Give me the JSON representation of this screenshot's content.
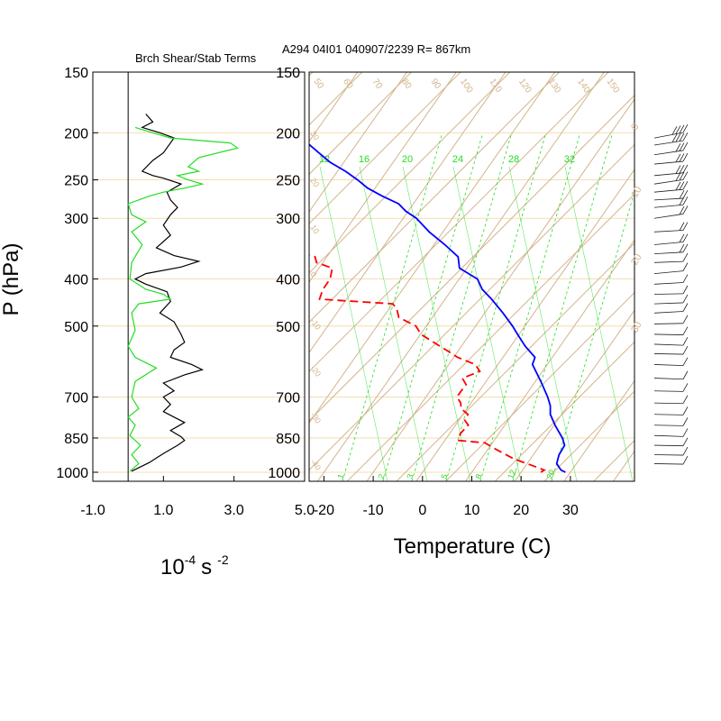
{
  "header": {
    "left_title": "Brch Shear/Stab Terms",
    "right_title": "A294 04I01 040907/2239 R= 867km"
  },
  "colors": {
    "isobar": "#f5deb3",
    "skew_grid": "#d2b48c",
    "mixing_ratio": "#22dd22",
    "temperature": "#0000ff",
    "dewpoint": "#ff0000",
    "shear": "#000000",
    "stability": "#22dd22",
    "frame": "#000000"
  },
  "chart_data": [
    {
      "type": "line",
      "name": "shear-stability-panel",
      "title": "Brch Shear/Stab Terms",
      "xlabel_main": "10",
      "xlabel_exp": "-4",
      "xlabel_unit": "s",
      "xlabel_unit_exp": "-2",
      "ylabel": "P (hPa)",
      "y_scale": "log",
      "xlim": [
        -1.0,
        5.0
      ],
      "ylim": [
        1000,
        150
      ],
      "x_tick_labels": [
        "-1.0",
        "1.0",
        "3.0",
        "5.0"
      ],
      "x_ticks": [
        -1.0,
        1.0,
        3.0,
        5.0
      ],
      "y_tick_labels": [
        "150",
        "200",
        "250",
        "300",
        "400",
        "500",
        "700",
        "850",
        "1000"
      ],
      "y_ticks": [
        150,
        200,
        250,
        300,
        400,
        500,
        700,
        850,
        1000
      ],
      "zero_line": 0,
      "series": [
        {
          "key": "shear",
          "points": [
            [
              0.5,
              183
            ],
            [
              0.7,
              190
            ],
            [
              0.4,
              195
            ],
            [
              0.9,
              200
            ],
            [
              1.3,
              205
            ],
            [
              1.0,
              220
            ],
            [
              0.7,
              228
            ],
            [
              0.4,
              240
            ],
            [
              0.7,
              245
            ],
            [
              1.0,
              248
            ],
            [
              1.5,
              255
            ],
            [
              1.1,
              265
            ],
            [
              1.2,
              275
            ],
            [
              1.4,
              285
            ],
            [
              1.2,
              295
            ],
            [
              1.0,
              310
            ],
            [
              1.2,
              325
            ],
            [
              0.8,
              345
            ],
            [
              1.3,
              358
            ],
            [
              2.0,
              368
            ],
            [
              1.5,
              378
            ],
            [
              0.5,
              390
            ],
            [
              0.2,
              400
            ],
            [
              0.5,
              410
            ],
            [
              1.1,
              425
            ],
            [
              1.2,
              445
            ],
            [
              0.9,
              470
            ],
            [
              1.3,
              490
            ],
            [
              1.5,
              520
            ],
            [
              1.6,
              540
            ],
            [
              1.3,
              560
            ],
            [
              1.2,
              580
            ],
            [
              1.8,
              600
            ],
            [
              2.1,
              615
            ],
            [
              1.6,
              630
            ],
            [
              1.0,
              655
            ],
            [
              1.3,
              680
            ],
            [
              1.0,
              700
            ],
            [
              1.2,
              725
            ],
            [
              1.0,
              750
            ],
            [
              1.3,
              770
            ],
            [
              1.6,
              790
            ],
            [
              1.4,
              805
            ],
            [
              1.2,
              820
            ],
            [
              1.5,
              845
            ],
            [
              1.6,
              860
            ],
            [
              1.4,
              880
            ],
            [
              1.0,
              915
            ],
            [
              0.6,
              955
            ],
            [
              0.1,
              995
            ]
          ]
        },
        {
          "key": "stability",
          "points": [
            [
              0.2,
              195
            ],
            [
              0.7,
              200
            ],
            [
              1.2,
              205
            ],
            [
              2.9,
              210
            ],
            [
              3.1,
              215
            ],
            [
              2.0,
              225
            ],
            [
              1.7,
              235
            ],
            [
              2.0,
              240
            ],
            [
              1.4,
              245
            ],
            [
              1.7,
              250
            ],
            [
              2.1,
              255
            ],
            [
              1.6,
              260
            ],
            [
              1.0,
              265
            ],
            [
              0.6,
              270
            ],
            [
              0.0,
              280
            ],
            [
              0.1,
              295
            ],
            [
              0.5,
              305
            ],
            [
              0.1,
              320
            ],
            [
              0.4,
              340
            ],
            [
              0.1,
              370
            ],
            [
              0.05,
              400
            ],
            [
              0.5,
              420
            ],
            [
              1.0,
              430
            ],
            [
              1.2,
              440
            ],
            [
              0.3,
              450
            ],
            [
              0.1,
              470
            ],
            [
              0.2,
              510
            ],
            [
              0.0,
              550
            ],
            [
              0.2,
              580
            ],
            [
              0.8,
              610
            ],
            [
              0.2,
              650
            ],
            [
              0.1,
              700
            ],
            [
              0.3,
              740
            ],
            [
              0.0,
              770
            ],
            [
              0.2,
              800
            ],
            [
              0.05,
              840
            ],
            [
              0.35,
              880
            ],
            [
              0.1,
              920
            ],
            [
              0.3,
              960
            ],
            [
              0.05,
              995
            ]
          ]
        }
      ]
    },
    {
      "type": "line",
      "name": "skew-t-log-p",
      "title": "A294 04I01 040907/2239 R= 867km",
      "xlabel": "Temperature (C)",
      "y_scale": "log",
      "xlim": [
        -23,
        43
      ],
      "ylim": [
        1000,
        150
      ],
      "skew_c_per_decade": 69,
      "x_tick_labels": [
        "-20",
        "-10",
        "0",
        "10",
        "20",
        "30"
      ],
      "x_ticks": [
        -20,
        -10,
        0,
        10,
        20,
        30
      ],
      "y_tick_labels": [
        "150",
        "200",
        "250",
        "300",
        "400",
        "500",
        "700",
        "850",
        "1000"
      ],
      "y_ticks": [
        150,
        200,
        250,
        300,
        400,
        500,
        700,
        850,
        1000
      ],
      "mixing_ratio_top_labels": [
        "12",
        "16",
        "20",
        "24",
        "28",
        "32"
      ],
      "mixing_ratio_bottom_labels": [
        "1",
        "2",
        "3",
        "5",
        "8",
        "12",
        "20"
      ],
      "skew_line_top_labels": [
        "50",
        "60",
        "70",
        "80",
        "90",
        "100",
        "110",
        "120",
        "130",
        "140",
        "150"
      ],
      "skew_line_left_labels": [
        "30",
        "20",
        "10",
        "0",
        "-10",
        "-20",
        "-30",
        "-40"
      ],
      "right_edge_labels": [
        "0",
        "10",
        "20",
        "30"
      ],
      "series": [
        {
          "key": "temperature",
          "points": [
            [
              29.0,
              1000
            ],
            [
              27.8,
              990
            ],
            [
              26.0,
              960
            ],
            [
              25.2,
              920
            ],
            [
              25.0,
              880
            ],
            [
              23.5,
              850
            ],
            [
              20.2,
              800
            ],
            [
              17.7,
              760
            ],
            [
              16.5,
              730
            ],
            [
              14.7,
              700
            ],
            [
              11.1,
              650
            ],
            [
              7.0,
              600
            ],
            [
              6.5,
              580
            ],
            [
              2.9,
              550
            ],
            [
              -0.3,
              520
            ],
            [
              -2.5,
              500
            ],
            [
              -6.3,
              470
            ],
            [
              -10.6,
              440
            ],
            [
              -13.9,
              420
            ],
            [
              -16.3,
              400
            ],
            [
              -21.5,
              380
            ],
            [
              -23.4,
              360
            ],
            [
              -27.8,
              340
            ],
            [
              -32.8,
              320
            ],
            [
              -37.3,
              300
            ],
            [
              -40.5,
              290
            ],
            [
              -43.0,
              280
            ],
            [
              -47.4,
              270
            ],
            [
              -51.5,
              260
            ],
            [
              -54.7,
              250
            ],
            [
              -58.4,
              240
            ],
            [
              -62.8,
              230
            ],
            [
              -66.4,
              220
            ],
            [
              -70.1,
              210
            ],
            [
              -72.3,
              200
            ],
            [
              -75.3,
              190
            ],
            [
              -80.7,
              180
            ]
          ]
        },
        {
          "key": "dewpoint",
          "points": [
            [
              24.0,
              1000
            ],
            [
              24.4,
              990
            ],
            [
              23.0,
              980
            ],
            [
              20.0,
              960
            ],
            [
              16.8,
              940
            ],
            [
              12.0,
              900
            ],
            [
              8.5,
              870
            ],
            [
              2.8,
              860
            ],
            [
              2.4,
              850
            ],
            [
              2.2,
              830
            ],
            [
              2.6,
              800
            ],
            [
              1.1,
              780
            ],
            [
              1.0,
              760
            ],
            [
              -1.2,
              740
            ],
            [
              -2.1,
              720
            ],
            [
              -3.7,
              700
            ],
            [
              -3.7,
              680
            ],
            [
              -3.6,
              660
            ],
            [
              -5.3,
              640
            ],
            [
              -2.7,
              620
            ],
            [
              -4.6,
              600
            ],
            [
              -9.2,
              580
            ],
            [
              -12.6,
              560
            ],
            [
              -16.2,
              540
            ],
            [
              -19.9,
              520
            ],
            [
              -22.1,
              500
            ],
            [
              -26.8,
              480
            ],
            [
              -28.5,
              460
            ],
            [
              -30.0,
              450
            ],
            [
              -45.5,
              440
            ],
            [
              -46.2,
              420
            ],
            [
              -46.2,
              400
            ],
            [
              -47.3,
              380
            ],
            [
              -51.3,
              370
            ],
            [
              -52.4,
              360
            ],
            [
              -58.3,
              350
            ],
            [
              -61.5,
              340
            ],
            [
              -58.9,
              320
            ],
            [
              -58.3,
              310
            ],
            [
              -60.5,
              300
            ],
            [
              -65.5,
              290
            ],
            [
              -70.1,
              280
            ],
            [
              -72.6,
              270
            ],
            [
              -73.2,
              260
            ],
            [
              -72.5,
              250
            ],
            [
              -72.6,
              240
            ],
            [
              -72.1,
              230
            ],
            [
              -73.3,
              220
            ],
            [
              -74.3,
              210
            ],
            [
              -76.4,
              200
            ]
          ]
        }
      ]
    }
  ],
  "wind_barbs": [
    [
      205,
      -10,
      35
    ],
    [
      212,
      -8,
      35
    ],
    [
      222,
      -8,
      30
    ],
    [
      232,
      -5,
      30
    ],
    [
      245,
      -5,
      25
    ],
    [
      255,
      -8,
      25
    ],
    [
      265,
      -5,
      25
    ],
    [
      275,
      -3,
      20
    ],
    [
      285,
      -5,
      20
    ],
    [
      300,
      -8,
      15
    ],
    [
      320,
      -3,
      15
    ],
    [
      340,
      -5,
      15
    ],
    [
      355,
      -3,
      15
    ],
    [
      370,
      -2,
      10
    ],
    [
      390,
      -5,
      10
    ],
    [
      410,
      -3,
      10
    ],
    [
      430,
      -1,
      10
    ],
    [
      450,
      -2,
      10
    ],
    [
      470,
      -3,
      10
    ],
    [
      495,
      -1,
      10
    ],
    [
      520,
      1,
      10
    ],
    [
      545,
      2,
      10
    ],
    [
      570,
      1,
      10
    ],
    [
      600,
      2,
      5
    ],
    [
      640,
      2,
      5
    ],
    [
      680,
      1,
      5
    ],
    [
      720,
      1,
      5
    ],
    [
      760,
      1,
      5
    ],
    [
      800,
      1,
      5
    ],
    [
      840,
      2,
      5
    ],
    [
      880,
      1,
      5
    ],
    [
      920,
      1,
      5
    ],
    [
      960,
      1,
      5
    ]
  ]
}
